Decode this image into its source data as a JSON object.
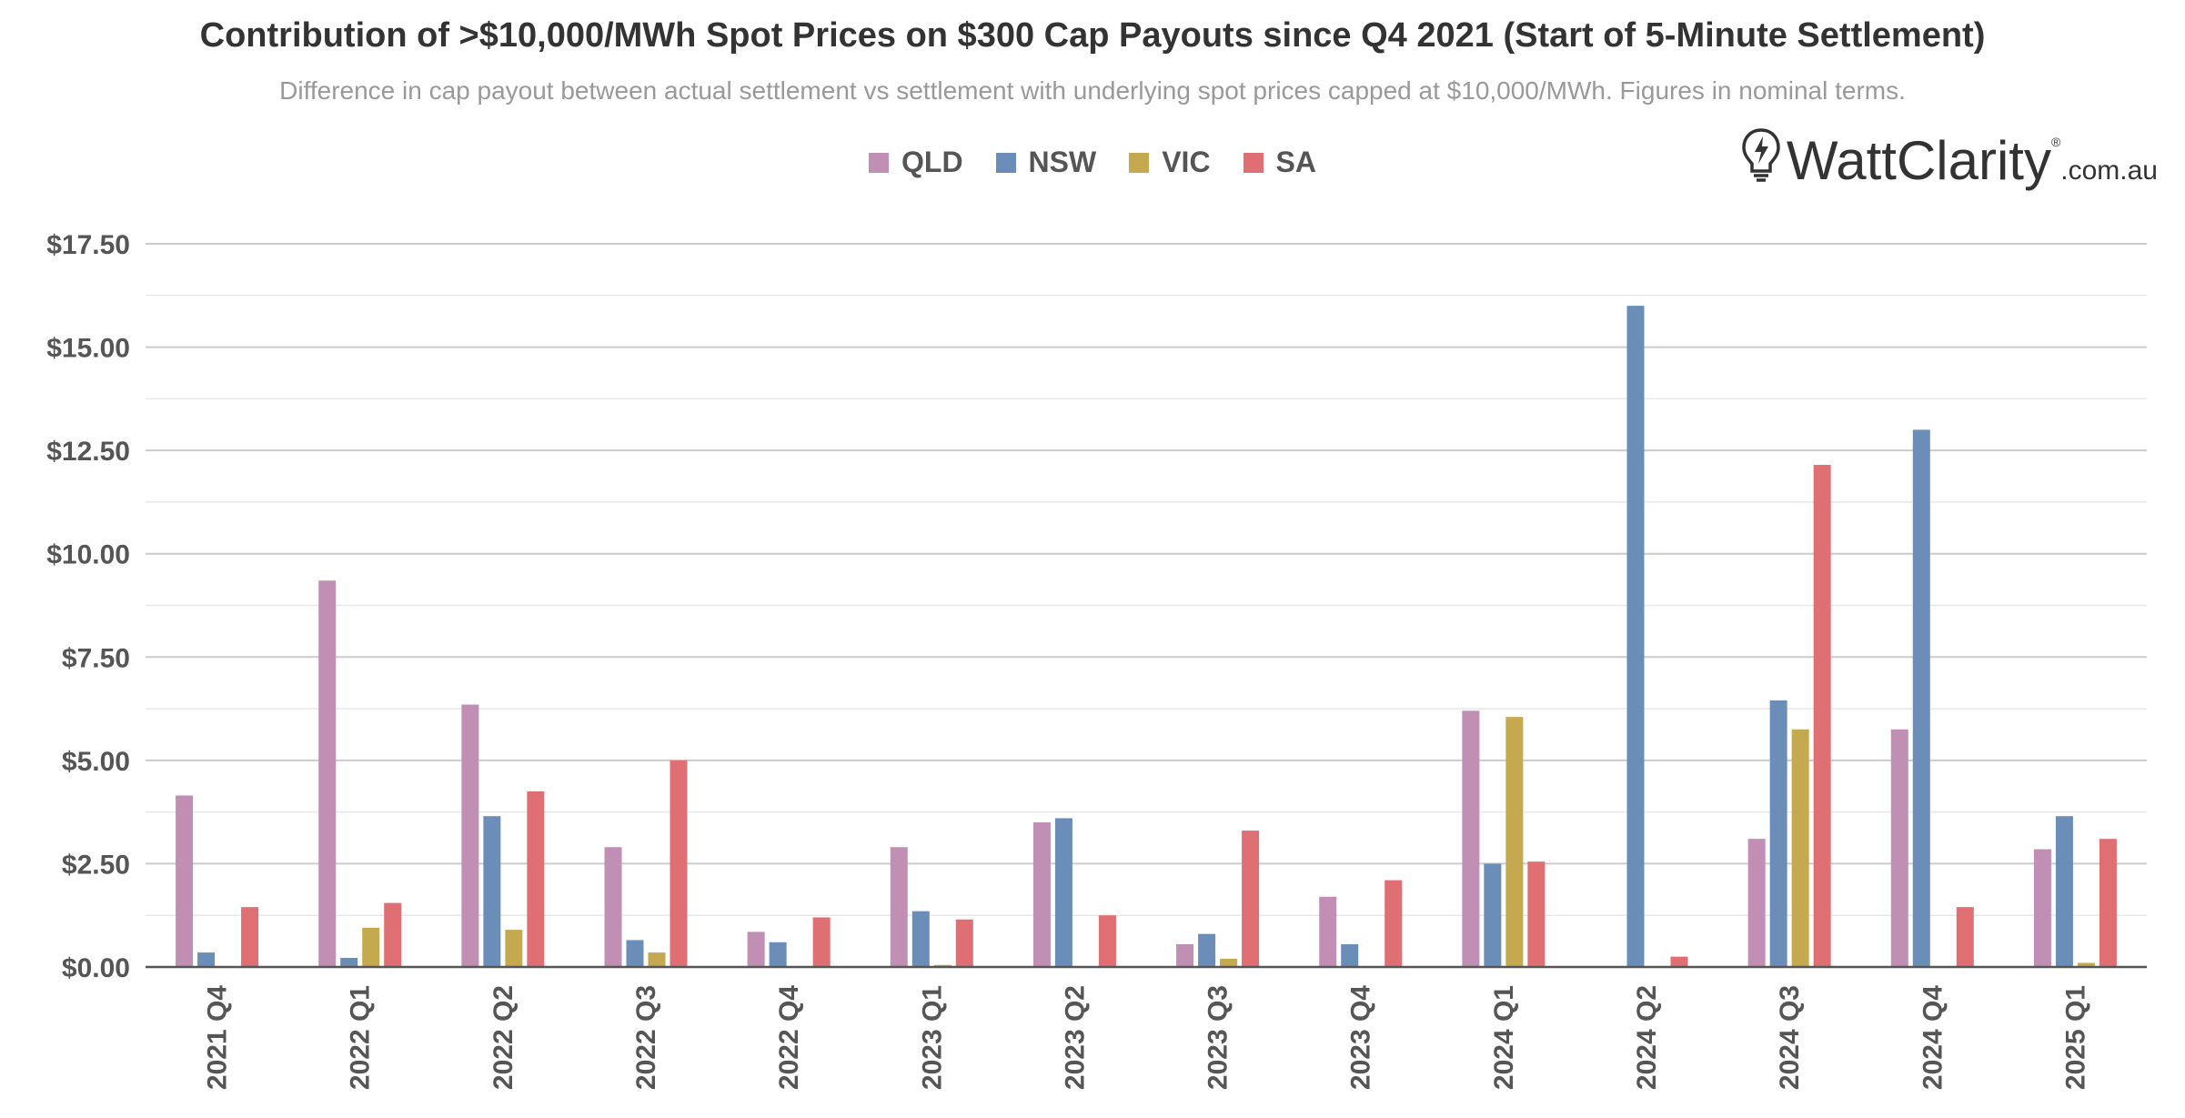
{
  "header": {
    "title": "Contribution of >$10,000/MWh Spot Prices on $300 Cap Payouts since Q4 2021 (Start of 5-Minute Settlement)",
    "subtitle": "Difference in cap payout between actual settlement vs settlement with underlying spot prices capped at $10,000/MWh. Figures in nominal terms."
  },
  "logo": {
    "main": "WattClarity",
    "suffix": ".com.au",
    "reg": "®",
    "icon": "lightbulb-icon"
  },
  "colors": {
    "QLD": "#c08fb3",
    "NSW": "#6b8eb8",
    "VIC": "#c4a94e",
    "SA": "#e06f74"
  },
  "chart_data": {
    "type": "bar",
    "title": "Contribution of >$10,000/MWh Spot Prices on $300 Cap Payouts since Q4 2021 (Start of 5-Minute Settlement)",
    "subtitle": "Difference in cap payout between actual settlement vs settlement with underlying spot prices capped at $10,000/MWh. Figures in nominal terms.",
    "categories": [
      "2021 Q4",
      "2022 Q1",
      "2022 Q2",
      "2022 Q3",
      "2022 Q4",
      "2023 Q1",
      "2023 Q2",
      "2023 Q3",
      "2023 Q4",
      "2024 Q1",
      "2024 Q2",
      "2024 Q3",
      "2024 Q4",
      "2025 Q1"
    ],
    "series": [
      {
        "name": "QLD",
        "values": [
          4.15,
          9.35,
          6.35,
          2.9,
          0.85,
          2.9,
          3.5,
          0.55,
          1.7,
          6.2,
          0,
          3.1,
          5.75,
          2.85
        ]
      },
      {
        "name": "NSW",
        "values": [
          0.35,
          0.22,
          3.65,
          0.65,
          0.6,
          1.35,
          3.6,
          0.8,
          0.55,
          2.5,
          16.0,
          6.45,
          13.0,
          3.65
        ]
      },
      {
        "name": "VIC",
        "values": [
          0,
          0.95,
          0.9,
          0.35,
          0,
          0.05,
          0,
          0.2,
          0,
          6.05,
          0,
          5.75,
          0,
          0.1
        ]
      },
      {
        "name": "SA",
        "values": [
          1.45,
          1.55,
          4.25,
          5.0,
          1.2,
          1.15,
          1.25,
          3.3,
          2.1,
          2.55,
          0.25,
          12.15,
          1.45,
          3.1
        ]
      }
    ],
    "yticks": [
      "$0.00",
      "$2.50",
      "$5.00",
      "$7.50",
      "$10.00",
      "$12.50",
      "$15.00",
      "$17.50"
    ],
    "ylim": [
      0,
      17.5
    ],
    "grid": true,
    "minor_grid": true,
    "legend_position": "top-center",
    "xlabel": "",
    "ylabel": ""
  }
}
